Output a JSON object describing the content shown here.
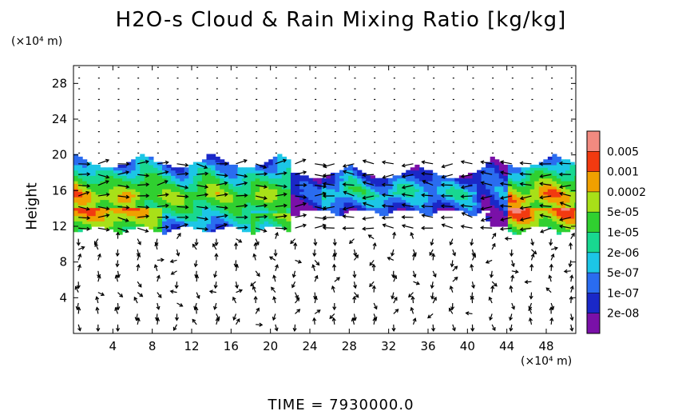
{
  "chart_data": {
    "type": "heatmap",
    "title": "H2O-s Cloud & Rain Mixing Ratio [kg/kg]",
    "ylabel": "Height",
    "xunit": "(×10⁴ m)",
    "yunit": "(×10⁴ m)",
    "footer": "TIME  =  7930000.0",
    "xlim": [
      0,
      51
    ],
    "ylim": [
      0,
      30
    ],
    "xticks": [
      4,
      8,
      12,
      16,
      20,
      24,
      28,
      32,
      36,
      40,
      44,
      48
    ],
    "yticks": [
      4,
      8,
      12,
      16,
      20,
      24,
      28
    ],
    "colorbar": {
      "levels": [
        "2e-08",
        "1e-07",
        "5e-07",
        "2e-06",
        "1e-05",
        "5e-05",
        "0.0002",
        "0.001",
        "0.005"
      ],
      "colors": [
        "#7a10a8",
        "#1a28c8",
        "#2a6cf0",
        "#1cc6e6",
        "#18d890",
        "#30d030",
        "#a8e018",
        "#f0a000",
        "#f23a10",
        "#f28a80"
      ]
    },
    "cloud_layer": {
      "base": 11,
      "top": 20
    },
    "wind_field": "vector arrows over full domain"
  }
}
